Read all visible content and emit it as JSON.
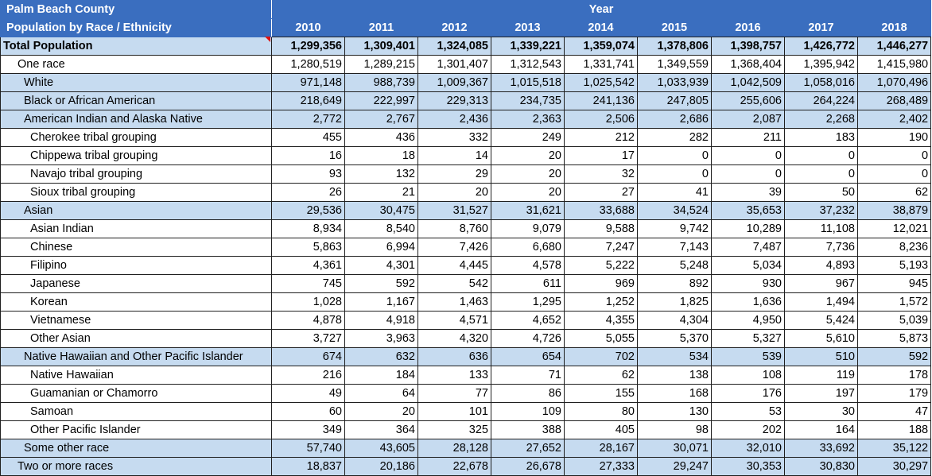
{
  "header": {
    "title_line1": "Palm Beach County",
    "title_line2": "Population by Race / Ethnicity",
    "year_label": "Year",
    "years": [
      "2010",
      "2011",
      "2012",
      "2013",
      "2014",
      "2015",
      "2016",
      "2017",
      "2018"
    ]
  },
  "rows": [
    {
      "label": "Total Population",
      "level": 0,
      "shade": true,
      "values": [
        "1,299,356",
        "1,309,401",
        "1,324,085",
        "1,339,221",
        "1,359,074",
        "1,378,806",
        "1,398,757",
        "1,426,772",
        "1,446,277"
      ]
    },
    {
      "label": "One race",
      "level": 1,
      "shade": false,
      "values": [
        "1,280,519",
        "1,289,215",
        "1,301,407",
        "1,312,543",
        "1,331,741",
        "1,349,559",
        "1,368,404",
        "1,395,942",
        "1,415,980"
      ]
    },
    {
      "label": "White",
      "level": 2,
      "shade": true,
      "values": [
        "971,148",
        "988,739",
        "1,009,367",
        "1,015,518",
        "1,025,542",
        "1,033,939",
        "1,042,509",
        "1,058,016",
        "1,070,496"
      ]
    },
    {
      "label": "Black or African American",
      "level": 2,
      "shade": true,
      "values": [
        "218,649",
        "222,997",
        "229,313",
        "234,735",
        "241,136",
        "247,805",
        "255,606",
        "264,224",
        "268,489"
      ]
    },
    {
      "label": "American Indian and Alaska Native",
      "level": 2,
      "shade": true,
      "values": [
        "2,772",
        "2,767",
        "2,436",
        "2,363",
        "2,506",
        "2,686",
        "2,087",
        "2,268",
        "2,402"
      ]
    },
    {
      "label": "Cherokee tribal grouping",
      "level": 3,
      "shade": false,
      "values": [
        "455",
        "436",
        "332",
        "249",
        "212",
        "282",
        "211",
        "183",
        "190"
      ]
    },
    {
      "label": "Chippewa tribal grouping",
      "level": 3,
      "shade": false,
      "values": [
        "16",
        "18",
        "14",
        "20",
        "17",
        "0",
        "0",
        "0",
        "0"
      ]
    },
    {
      "label": "Navajo tribal grouping",
      "level": 3,
      "shade": false,
      "values": [
        "93",
        "132",
        "29",
        "20",
        "32",
        "0",
        "0",
        "0",
        "0"
      ]
    },
    {
      "label": "Sioux tribal grouping",
      "level": 3,
      "shade": false,
      "values": [
        "26",
        "21",
        "20",
        "20",
        "27",
        "41",
        "39",
        "50",
        "62"
      ]
    },
    {
      "label": "Asian",
      "level": 2,
      "shade": true,
      "values": [
        "29,536",
        "30,475",
        "31,527",
        "31,621",
        "33,688",
        "34,524",
        "35,653",
        "37,232",
        "38,879"
      ]
    },
    {
      "label": "Asian Indian",
      "level": 3,
      "shade": false,
      "values": [
        "8,934",
        "8,540",
        "8,760",
        "9,079",
        "9,588",
        "9,742",
        "10,289",
        "11,108",
        "12,021"
      ]
    },
    {
      "label": "Chinese",
      "level": 3,
      "shade": false,
      "values": [
        "5,863",
        "6,994",
        "7,426",
        "6,680",
        "7,247",
        "7,143",
        "7,487",
        "7,736",
        "8,236"
      ]
    },
    {
      "label": "Filipino",
      "level": 3,
      "shade": false,
      "values": [
        "4,361",
        "4,301",
        "4,445",
        "4,578",
        "5,222",
        "5,248",
        "5,034",
        "4,893",
        "5,193"
      ]
    },
    {
      "label": "Japanese",
      "level": 3,
      "shade": false,
      "values": [
        "745",
        "592",
        "542",
        "611",
        "969",
        "892",
        "930",
        "967",
        "945"
      ]
    },
    {
      "label": "Korean",
      "level": 3,
      "shade": false,
      "values": [
        "1,028",
        "1,167",
        "1,463",
        "1,295",
        "1,252",
        "1,825",
        "1,636",
        "1,494",
        "1,572"
      ]
    },
    {
      "label": "Vietnamese",
      "level": 3,
      "shade": false,
      "values": [
        "4,878",
        "4,918",
        "4,571",
        "4,652",
        "4,355",
        "4,304",
        "4,950",
        "5,424",
        "5,039"
      ]
    },
    {
      "label": "Other Asian",
      "level": 3,
      "shade": false,
      "values": [
        "3,727",
        "3,963",
        "4,320",
        "4,726",
        "5,055",
        "5,370",
        "5,327",
        "5,610",
        "5,873"
      ]
    },
    {
      "label": "Native Hawaiian and Other Pacific Islander",
      "level": 2,
      "shade": true,
      "values": [
        "674",
        "632",
        "636",
        "654",
        "702",
        "534",
        "539",
        "510",
        "592"
      ]
    },
    {
      "label": "Native Hawaiian",
      "level": 3,
      "shade": false,
      "values": [
        "216",
        "184",
        "133",
        "71",
        "62",
        "138",
        "108",
        "119",
        "178"
      ]
    },
    {
      "label": "Guamanian or Chamorro",
      "level": 3,
      "shade": false,
      "values": [
        "49",
        "64",
        "77",
        "86",
        "155",
        "168",
        "176",
        "197",
        "179"
      ]
    },
    {
      "label": "Samoan",
      "level": 3,
      "shade": false,
      "values": [
        "60",
        "20",
        "101",
        "109",
        "80",
        "130",
        "53",
        "30",
        "47"
      ]
    },
    {
      "label": "Other Pacific Islander",
      "level": 3,
      "shade": false,
      "values": [
        "349",
        "364",
        "325",
        "388",
        "405",
        "98",
        "202",
        "164",
        "188"
      ]
    },
    {
      "label": "Some other race",
      "level": 2,
      "shade": true,
      "values": [
        "57,740",
        "43,605",
        "28,128",
        "27,652",
        "28,167",
        "30,071",
        "32,010",
        "33,692",
        "35,122"
      ]
    },
    {
      "label": "Two or more races",
      "level": 1,
      "shade": true,
      "values": [
        "18,837",
        "20,186",
        "22,678",
        "26,678",
        "27,333",
        "29,247",
        "30,353",
        "30,830",
        "30,297"
      ]
    }
  ],
  "colors": {
    "header_bg": "#3a6ebf",
    "shade_bg": "#c6dbf0",
    "comment_marker": "#dd1111"
  }
}
